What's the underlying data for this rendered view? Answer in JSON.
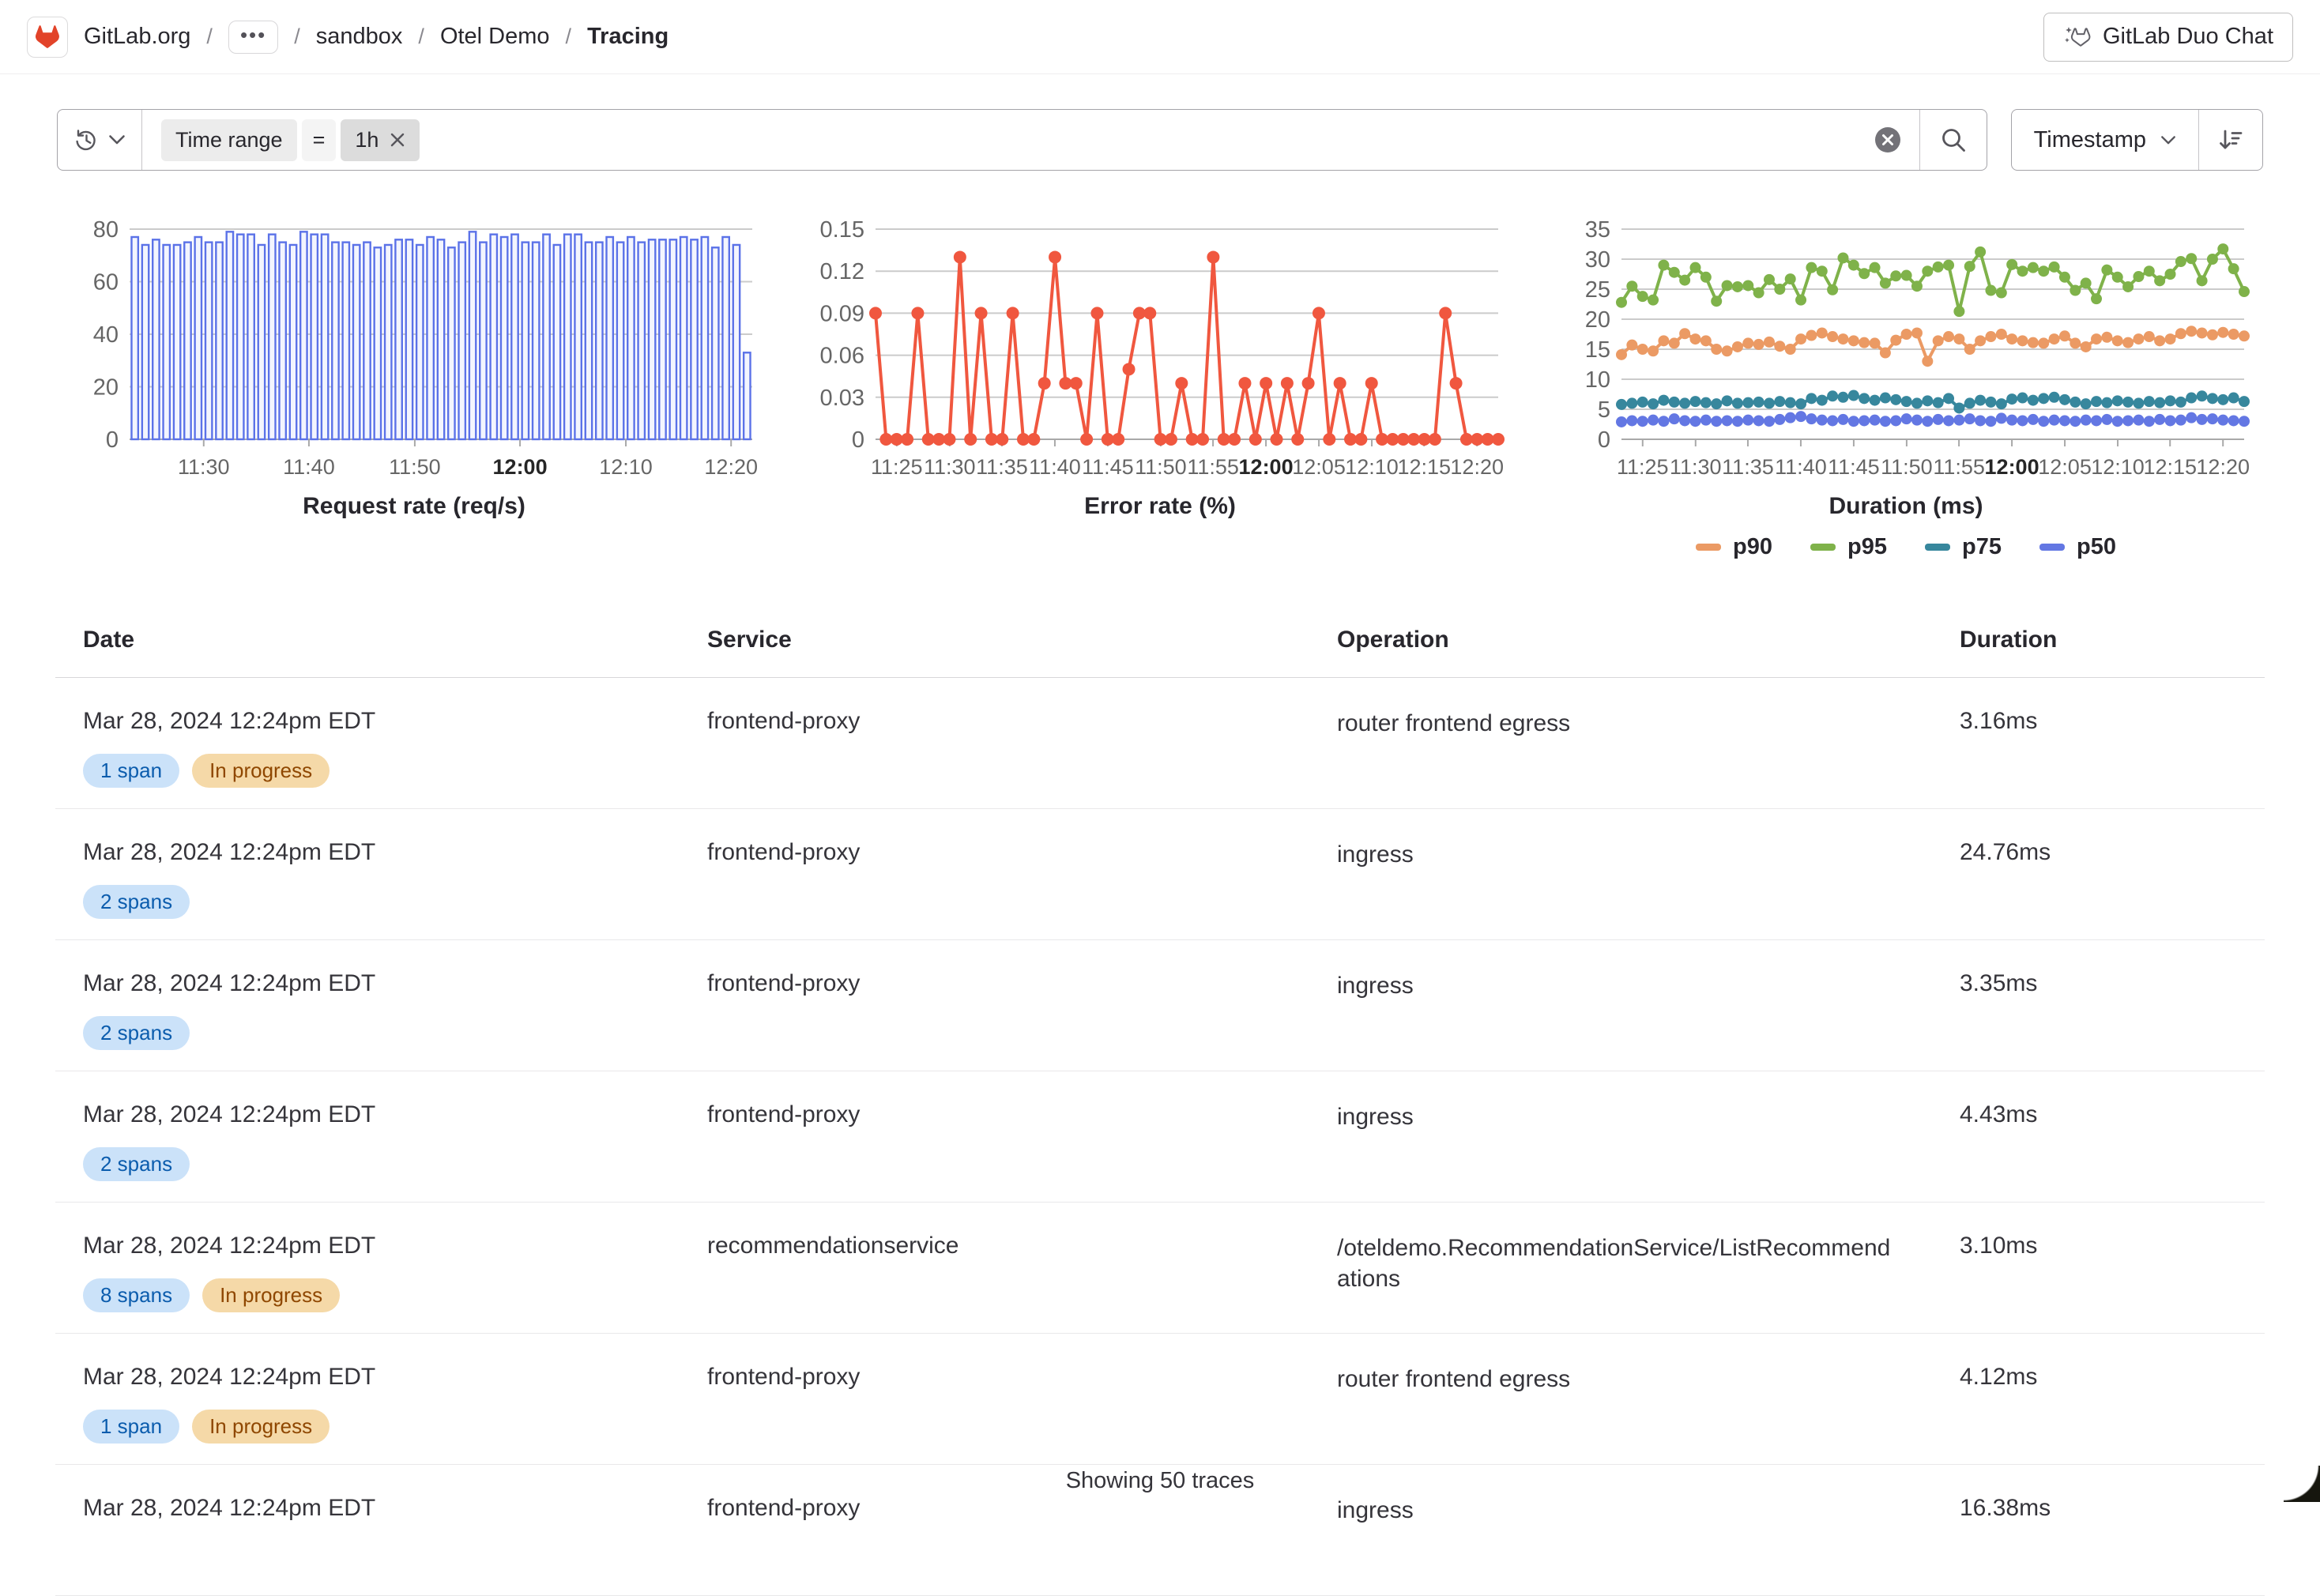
{
  "header": {
    "breadcrumb": {
      "root": "GitLab.org",
      "ellipsis": "•••",
      "group": "sandbox",
      "project": "Otel Demo",
      "current": "Tracing"
    },
    "duo_chat_label": "GitLab Duo Chat"
  },
  "filter_bar": {
    "token": {
      "field": "Time range",
      "operator": "=",
      "value": "1h"
    },
    "sort_field": "Timestamp"
  },
  "chart_data": [
    {
      "type": "bar",
      "title": "Request rate (req/s)",
      "ylim": [
        0,
        80
      ],
      "yticks": [
        0,
        20,
        40,
        60,
        80
      ],
      "color": "#5b72e8",
      "fill": "#f3f5fe",
      "xticks": [
        {
          "label": "11:30",
          "pos": 0.119
        },
        {
          "label": "11:40",
          "pos": 0.288
        },
        {
          "label": "11:50",
          "pos": 0.458
        },
        {
          "label": "12:00",
          "pos": 0.627,
          "bold": true
        },
        {
          "label": "12:10",
          "pos": 0.797
        },
        {
          "label": "12:20",
          "pos": 0.966
        }
      ],
      "values": [
        77,
        74,
        76,
        74,
        74,
        75,
        77,
        75,
        75,
        79,
        78,
        78,
        74,
        78,
        75,
        74,
        79,
        78,
        78,
        75,
        75,
        74,
        75,
        73,
        74,
        76,
        76,
        74,
        77,
        76,
        73,
        75,
        79,
        75,
        78,
        77,
        78,
        75,
        75,
        78,
        74,
        78,
        78,
        75,
        75,
        77,
        75,
        77,
        75,
        76,
        76,
        76,
        77,
        76,
        77,
        73,
        77,
        74,
        33
      ]
    },
    {
      "type": "line",
      "title": "Error rate (%)",
      "ylim": [
        0,
        0.15
      ],
      "yticks": [
        0,
        0.03,
        0.06,
        0.09,
        0.12,
        0.15
      ],
      "marker": 8,
      "xticks": [
        {
          "label": "11:25",
          "pos": 0.034
        },
        {
          "label": "11:30",
          "pos": 0.119
        },
        {
          "label": "11:35",
          "pos": 0.203
        },
        {
          "label": "11:40",
          "pos": 0.288
        },
        {
          "label": "11:45",
          "pos": 0.373
        },
        {
          "label": "11:50",
          "pos": 0.458
        },
        {
          "label": "11:55",
          "pos": 0.542
        },
        {
          "label": "12:00",
          "pos": 0.627,
          "bold": true
        },
        {
          "label": "12:05",
          "pos": 0.712
        },
        {
          "label": "12:10",
          "pos": 0.797
        },
        {
          "label": "12:15",
          "pos": 0.881
        },
        {
          "label": "12:20",
          "pos": 0.966
        }
      ],
      "series": [
        {
          "name": "error rate",
          "color": "#f0573f",
          "values": [
            0.09,
            0,
            0,
            0,
            0.09,
            0,
            0,
            0,
            0.13,
            0,
            0.09,
            0,
            0,
            0.09,
            0,
            0,
            0.04,
            0.13,
            0.04,
            0.04,
            0,
            0.09,
            0,
            0,
            0.05,
            0.09,
            0.09,
            0,
            0,
            0.04,
            0,
            0,
            0.13,
            0,
            0,
            0.04,
            0,
            0.04,
            0,
            0.04,
            0,
            0.04,
            0.09,
            0,
            0.04,
            0,
            0,
            0.04,
            0,
            0,
            0,
            0,
            0,
            0,
            0.09,
            0.04,
            0,
            0,
            0,
            0
          ]
        }
      ]
    },
    {
      "type": "line",
      "title": "Duration (ms)",
      "ylim": [
        0,
        35
      ],
      "yticks": [
        0,
        5,
        10,
        15,
        20,
        25,
        30,
        35
      ],
      "marker": 7,
      "legend": true,
      "legend_order": [
        "p90",
        "p95",
        "p75",
        "p50"
      ],
      "xticks": [
        {
          "label": "11:25",
          "pos": 0.034
        },
        {
          "label": "11:30",
          "pos": 0.119
        },
        {
          "label": "11:35",
          "pos": 0.203
        },
        {
          "label": "11:40",
          "pos": 0.288
        },
        {
          "label": "11:45",
          "pos": 0.373
        },
        {
          "label": "11:50",
          "pos": 0.458
        },
        {
          "label": "11:55",
          "pos": 0.542
        },
        {
          "label": "12:00",
          "pos": 0.627,
          "bold": true
        },
        {
          "label": "12:05",
          "pos": 0.712
        },
        {
          "label": "12:10",
          "pos": 0.797
        },
        {
          "label": "12:15",
          "pos": 0.881
        },
        {
          "label": "12:20",
          "pos": 0.966
        }
      ],
      "series": [
        {
          "name": "p95",
          "color": "#7fb24a",
          "values": [
            22.8,
            25.5,
            23.8,
            23.2,
            29,
            27.8,
            26.5,
            28.6,
            27,
            23,
            25.6,
            25.4,
            25.6,
            24.4,
            26.6,
            25,
            26.7,
            23.2,
            28.6,
            28,
            24.9,
            30.2,
            29,
            27.6,
            28.6,
            26,
            27.2,
            27.3,
            25.5,
            28,
            28.7,
            29,
            21.3,
            28.8,
            31.2,
            24.8,
            24.4,
            29.1,
            28,
            28.6,
            28,
            28.7,
            27,
            24.8,
            26,
            23.4,
            28.2,
            27,
            25.4,
            27.1,
            28,
            26.4,
            27.5,
            29.6,
            30.1,
            26.4,
            30,
            31.7,
            28.4,
            24.6
          ]
        },
        {
          "name": "p90",
          "color": "#eb9a64",
          "values": [
            14.1,
            15.7,
            15,
            14.7,
            16.4,
            16,
            17.6,
            16.7,
            16.4,
            15,
            14.7,
            15.4,
            16,
            15.8,
            16.2,
            15.5,
            15,
            16.7,
            17.3,
            17.7,
            17.1,
            16.7,
            16.4,
            16.1,
            16,
            14.4,
            16.5,
            17.5,
            17.7,
            13,
            16.4,
            17.1,
            16.7,
            15,
            16.4,
            17.1,
            17.5,
            16.7,
            16.4,
            16.1,
            16,
            16.7,
            17.2,
            16,
            15.4,
            16.7,
            17,
            16.4,
            16.1,
            16.7,
            17.1,
            16.4,
            16.7,
            17.6,
            18,
            17.7,
            17.4,
            17.8,
            17.5,
            17.2
          ]
        },
        {
          "name": "p75",
          "color": "#37879d",
          "values": [
            5.8,
            6,
            6.2,
            5.9,
            6.5,
            6.2,
            6,
            6.3,
            6.1,
            5.9,
            6.4,
            6,
            6.1,
            6.2,
            6,
            6.3,
            6.1,
            5.9,
            6.8,
            6.5,
            7.2,
            7,
            7.3,
            6.8,
            6.5,
            6.9,
            6.6,
            6.3,
            6,
            6.4,
            6.1,
            6.8,
            5.2,
            6,
            6.5,
            6.2,
            5.9,
            6.7,
            6.9,
            6.5,
            6.8,
            7,
            6.6,
            6.2,
            5.9,
            6.3,
            6.1,
            6.4,
            6.2,
            6,
            6.3,
            6.1,
            6.4,
            6.2,
            6.9,
            7.2,
            6.8,
            6.6,
            6.9,
            6.3
          ]
        },
        {
          "name": "p50",
          "color": "#6377e3",
          "values": [
            2.9,
            3.1,
            3,
            3.2,
            3,
            3.4,
            3.1,
            3,
            3.2,
            3,
            3.1,
            3,
            3.2,
            3.1,
            3,
            3.3,
            3.6,
            3.8,
            3.4,
            3.2,
            3.1,
            3.3,
            3,
            3.1,
            3.2,
            3,
            3.1,
            3.4,
            3.2,
            3,
            3.3,
            3.1,
            3.2,
            3.4,
            3.1,
            3,
            3.5,
            3.2,
            3.1,
            3.3,
            3,
            3.2,
            3.1,
            3,
            3.2,
            3.1,
            3.3,
            3,
            3.1,
            3.2,
            3,
            3.3,
            3.1,
            3.2,
            3.6,
            3.3,
            3.4,
            3.2,
            3.1,
            3
          ]
        }
      ]
    }
  ],
  "table": {
    "columns": [
      "Date",
      "Service",
      "Operation",
      "Duration"
    ],
    "rows": [
      {
        "date": "Mar 28, 2024 12:24pm EDT",
        "service": "frontend-proxy",
        "operation": "router frontend egress",
        "duration": "3.16ms",
        "badges": [
          {
            "text": "1 span",
            "type": "info"
          },
          {
            "text": "In progress",
            "type": "warning"
          }
        ]
      },
      {
        "date": "Mar 28, 2024 12:24pm EDT",
        "service": "frontend-proxy",
        "operation": "ingress",
        "duration": "24.76ms",
        "badges": [
          {
            "text": "2 spans",
            "type": "info"
          }
        ]
      },
      {
        "date": "Mar 28, 2024 12:24pm EDT",
        "service": "frontend-proxy",
        "operation": "ingress",
        "duration": "3.35ms",
        "badges": [
          {
            "text": "2 spans",
            "type": "info"
          }
        ]
      },
      {
        "date": "Mar 28, 2024 12:24pm EDT",
        "service": "frontend-proxy",
        "operation": "ingress",
        "duration": "4.43ms",
        "badges": [
          {
            "text": "2 spans",
            "type": "info"
          }
        ]
      },
      {
        "date": "Mar 28, 2024 12:24pm EDT",
        "service": "recommendationservice",
        "operation": "/oteldemo.RecommendationService/ListRecommendations",
        "duration": "3.10ms",
        "badges": [
          {
            "text": "8 spans",
            "type": "info"
          },
          {
            "text": "In progress",
            "type": "warning"
          }
        ]
      },
      {
        "date": "Mar 28, 2024 12:24pm EDT",
        "service": "frontend-proxy",
        "operation": "router frontend egress",
        "duration": "4.12ms",
        "badges": [
          {
            "text": "1 span",
            "type": "info"
          },
          {
            "text": "In progress",
            "type": "warning"
          }
        ]
      },
      {
        "date": "Mar 28, 2024 12:24pm EDT",
        "service": "frontend-proxy",
        "operation": "ingress",
        "duration": "16.38ms",
        "badges": []
      }
    ]
  },
  "footer": {
    "summary": "Showing 50 traces"
  },
  "colors": {
    "brand": "#e24329",
    "bar": "#5b72e8",
    "error": "#f0573f",
    "p95": "#7fb24a",
    "p90": "#eb9a64",
    "p75": "#37879d",
    "p50": "#6377e3",
    "badge_info_bg": "#cbe2f9",
    "badge_info_text": "#0b5cad",
    "badge_warning_bg": "#f5d9a8",
    "badge_warning_text": "#8f4700"
  }
}
